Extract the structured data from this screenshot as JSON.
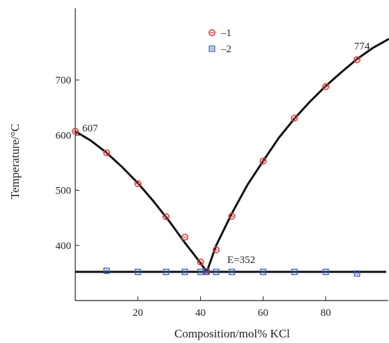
{
  "chart_data": {
    "type": "scatter",
    "title": "",
    "xlabel": "Composition/mol% KCl",
    "ylabel": "Temperature/°C",
    "xlim": [
      0,
      100
    ],
    "ylim": [
      300,
      830
    ],
    "xticks": [
      20,
      40,
      60,
      80
    ],
    "yticks": [
      400,
      500,
      600,
      700
    ],
    "grid": false,
    "legend": {
      "placement": "top-center"
    },
    "series": [
      {
        "name": "–1",
        "marker": "circle",
        "color": "#e23a3a",
        "x": [
          0,
          10,
          20,
          29,
          35,
          40,
          42,
          45,
          50,
          60,
          70,
          80,
          90
        ],
        "y": [
          607,
          568,
          512,
          452,
          415,
          370,
          353,
          392,
          453,
          553,
          631,
          688,
          737
        ]
      },
      {
        "name": "–2",
        "marker": "square",
        "color": "#3b5fb8",
        "x": [
          10,
          20,
          29,
          35,
          40,
          42,
          45,
          50,
          60,
          70,
          80,
          90
        ],
        "y": [
          354,
          352,
          352,
          352,
          352,
          352,
          352,
          352,
          352,
          352,
          352,
          349
        ]
      }
    ],
    "curves": {
      "liquidus_left_x": [
        0,
        5,
        10,
        15,
        20,
        25,
        30,
        35,
        38,
        40,
        42
      ],
      "liquidus_left_y": [
        607,
        590,
        568,
        542,
        513,
        480,
        444,
        405,
        383,
        368,
        352
      ],
      "liquidus_right_x": [
        42,
        45,
        50,
        55,
        60,
        65,
        70,
        75,
        80,
        85,
        90,
        95,
        100
      ],
      "liquidus_right_y": [
        352,
        400,
        458,
        510,
        553,
        595,
        630,
        661,
        689,
        714,
        738,
        758,
        774
      ],
      "eutectic_line_y": 352
    },
    "annotations": {
      "left_melt": "607",
      "right_melt": "774",
      "eutectic": "E=352"
    }
  }
}
